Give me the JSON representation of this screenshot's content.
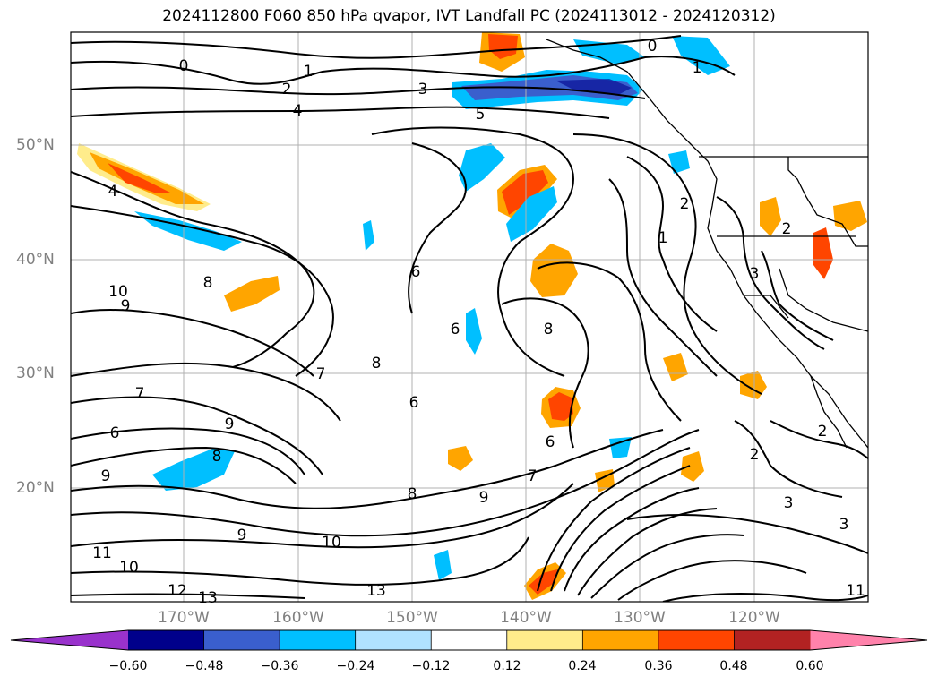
{
  "title": "2024112800 F060 850 hPa qvapor, IVT Landfall PC (2024113012 - 2024120312)",
  "lat_labels": [
    "50°N",
    "40°N",
    "30°N",
    "20°N"
  ],
  "lon_labels": [
    "170°W",
    "160°W",
    "150°W",
    "140°W",
    "130°W",
    "120°W"
  ],
  "colorbar": {
    "ticks": [
      "−0.60",
      "−0.48",
      "−0.36",
      "−0.24",
      "−0.12",
      "0.12",
      "0.24",
      "0.36",
      "0.48",
      "0.60"
    ],
    "colors": [
      "#9932cc",
      "#00008b",
      "#3a5fcd",
      "#00bfff",
      "#b0e2ff",
      "#ffffff",
      "#ffec8b",
      "#ffa500",
      "#ff4500",
      "#b22222",
      "#ff82ab"
    ]
  },
  "contour_labels": [
    "0",
    "0",
    "1",
    "1",
    "2",
    "3",
    "4",
    "5",
    "4",
    "2",
    "1",
    "2",
    "3",
    "10",
    "9",
    "8",
    "6",
    "6",
    "8",
    "7",
    "8",
    "7",
    "6",
    "9",
    "8",
    "9",
    "6",
    "6",
    "8",
    "9",
    "7",
    "2",
    "2",
    "3",
    "3",
    "9",
    "10",
    "11",
    "10",
    "12",
    "13",
    "13",
    "11"
  ]
}
